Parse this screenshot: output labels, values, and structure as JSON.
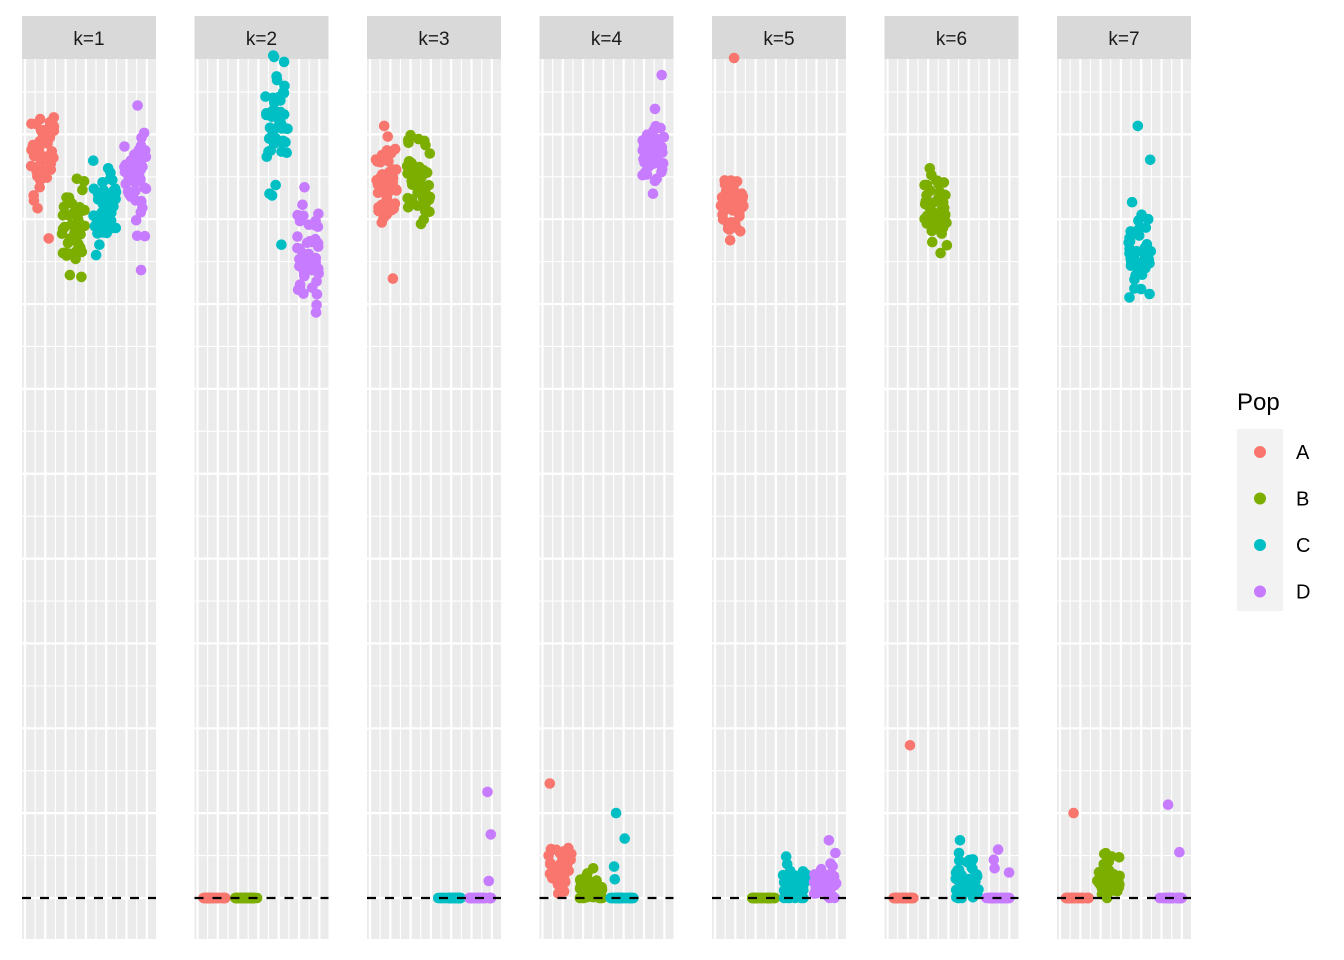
{
  "chart_data": {
    "type": "scatter",
    "facet_variable": "k",
    "facets": [
      "k=1",
      "k=2",
      "k=3",
      "k=4",
      "k=5",
      "k=6",
      "k=7"
    ],
    "ylim": [
      -0.05,
      1.0
    ],
    "reference_line": {
      "y": 0,
      "style": "dashed"
    },
    "legend": {
      "title": "Pop",
      "position": "right",
      "entries": [
        {
          "label": "A",
          "color": "#F8766D"
        },
        {
          "label": "B",
          "color": "#7CAE00"
        },
        {
          "label": "C",
          "color": "#00BFC4"
        },
        {
          "label": "D",
          "color": "#C77CFF"
        }
      ]
    },
    "series": [
      {
        "facet": "k=1",
        "pop": "A",
        "y_center": 0.87,
        "y_spread": 0.035,
        "n": 45,
        "outliers": [
          0.92
        ]
      },
      {
        "facet": "k=1",
        "pop": "B",
        "y_center": 0.79,
        "y_spread": 0.025,
        "n": 45,
        "outliers": []
      },
      {
        "facet": "k=1",
        "pop": "C",
        "y_center": 0.81,
        "y_spread": 0.025,
        "n": 45,
        "outliers": [
          0.86,
          0.77
        ]
      },
      {
        "facet": "k=1",
        "pop": "D",
        "y_center": 0.86,
        "y_spread": 0.025,
        "n": 45,
        "outliers": [
          0.78,
          0.74
        ]
      },
      {
        "facet": "k=2",
        "pop": "A",
        "y_center": 0.0,
        "y_spread": 0,
        "n": 45,
        "outliers": []
      },
      {
        "facet": "k=2",
        "pop": "B",
        "y_center": 0.0,
        "y_spread": 0,
        "n": 45,
        "outliers": []
      },
      {
        "facet": "k=2",
        "pop": "C",
        "y_center": 0.92,
        "y_spread": 0.035,
        "n": 45,
        "outliers": [
          0.83,
          0.77
        ]
      },
      {
        "facet": "k=2",
        "pop": "D",
        "y_center": 0.76,
        "y_spread": 0.03,
        "n": 45,
        "outliers": [
          0.69
        ]
      },
      {
        "facet": "k=3",
        "pop": "A",
        "y_center": 0.84,
        "y_spread": 0.025,
        "n": 45,
        "outliers": [
          0.91,
          0.73
        ]
      },
      {
        "facet": "k=3",
        "pop": "B",
        "y_center": 0.84,
        "y_spread": 0.025,
        "n": 45,
        "outliers": [
          0.89
        ]
      },
      {
        "facet": "k=3",
        "pop": "C",
        "y_center": 0.0,
        "y_spread": 0,
        "n": 45,
        "outliers": []
      },
      {
        "facet": "k=3",
        "pop": "D",
        "y_center": 0.0,
        "y_spread": 0,
        "n": 45,
        "outliers": [
          0.125,
          0.075,
          0.02
        ]
      },
      {
        "facet": "k=4",
        "pop": "A",
        "y_center": 0.035,
        "y_spread": 0.015,
        "n": 45,
        "outliers": [
          0.135
        ]
      },
      {
        "facet": "k=4",
        "pop": "B",
        "y_center": 0.01,
        "y_spread": 0.01,
        "n": 45,
        "outliers": [
          0.035
        ]
      },
      {
        "facet": "k=4",
        "pop": "C",
        "y_center": 0.0,
        "y_spread": 0,
        "n": 45,
        "outliers": [
          0.1,
          0.07,
          0.037,
          0.022
        ]
      },
      {
        "facet": "k=4",
        "pop": "D",
        "y_center": 0.875,
        "y_spread": 0.015,
        "n": 45,
        "outliers": [
          0.97,
          0.93,
          0.83
        ]
      },
      {
        "facet": "k=5",
        "pop": "A",
        "y_center": 0.82,
        "y_spread": 0.02,
        "n": 45,
        "outliers": [
          0.99,
          0.79
        ]
      },
      {
        "facet": "k=5",
        "pop": "B",
        "y_center": 0.0,
        "y_spread": 0,
        "n": 45,
        "outliers": []
      },
      {
        "facet": "k=5",
        "pop": "C",
        "y_center": 0.015,
        "y_spread": 0.012,
        "n": 45,
        "outliers": [
          0.04
        ]
      },
      {
        "facet": "k=5",
        "pop": "D",
        "y_center": 0.02,
        "y_spread": 0.012,
        "n": 45,
        "outliers": [
          0.068,
          0.053
        ]
      },
      {
        "facet": "k=6",
        "pop": "A",
        "y_center": 0.0,
        "y_spread": 0,
        "n": 45,
        "outliers": [
          0.18
        ]
      },
      {
        "facet": "k=6",
        "pop": "B",
        "y_center": 0.81,
        "y_spread": 0.02,
        "n": 45,
        "outliers": [
          0.86,
          0.76
        ]
      },
      {
        "facet": "k=6",
        "pop": "C",
        "y_center": 0.02,
        "y_spread": 0.015,
        "n": 45,
        "outliers": [
          0.068,
          0.053
        ]
      },
      {
        "facet": "k=6",
        "pop": "D",
        "y_center": 0.0,
        "y_spread": 0,
        "n": 45,
        "outliers": [
          0.057,
          0.045,
          0.035,
          0.03
        ]
      },
      {
        "facet": "k=7",
        "pop": "A",
        "y_center": 0.0,
        "y_spread": 0,
        "n": 45,
        "outliers": [
          0.1
        ]
      },
      {
        "facet": "k=7",
        "pop": "B",
        "y_center": 0.02,
        "y_spread": 0.012,
        "n": 45,
        "outliers": [
          0.048
        ]
      },
      {
        "facet": "k=7",
        "pop": "C",
        "y_center": 0.76,
        "y_spread": 0.02,
        "n": 45,
        "outliers": [
          0.91,
          0.87,
          0.82,
          0.8
        ]
      },
      {
        "facet": "k=7",
        "pop": "D",
        "y_center": 0.0,
        "y_spread": 0,
        "n": 45,
        "outliers": [
          0.11,
          0.054
        ]
      }
    ]
  }
}
